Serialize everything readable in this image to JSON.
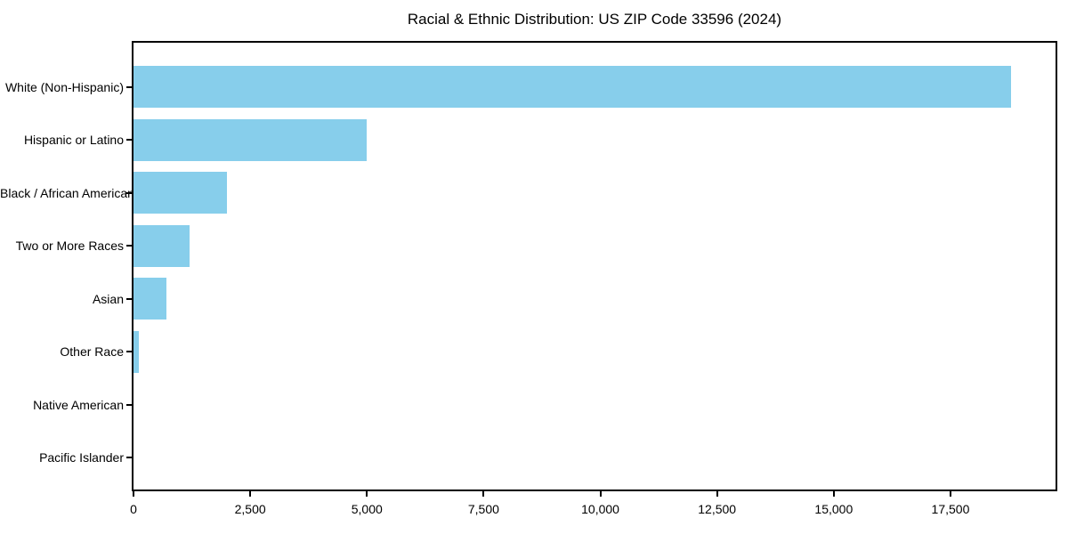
{
  "chart_data": {
    "type": "bar",
    "orientation": "horizontal",
    "title": "Racial & Ethnic Distribution: US ZIP Code 33596 (2024)",
    "categories": [
      "White (Non-Hispanic)",
      "Hispanic or Latino",
      "Black / African American",
      "Two or More Races",
      "Asian",
      "Other Race",
      "Native American",
      "Pacific Islander"
    ],
    "values": [
      18800,
      5000,
      2000,
      1200,
      700,
      110,
      0,
      0
    ],
    "xlabel": "",
    "ylabel": "",
    "xlim": [
      0,
      19750
    ],
    "xticks": [
      0,
      2500,
      5000,
      7500,
      10000,
      12500,
      15000,
      17500
    ],
    "xtick_labels": [
      "0",
      "2,500",
      "5,000",
      "7,500",
      "10,000",
      "12,500",
      "15,000",
      "17,500"
    ],
    "bar_color": "#87CEEB",
    "background_color": "#ffffff",
    "spine_color": "#000000",
    "grid": false,
    "legend": null
  }
}
